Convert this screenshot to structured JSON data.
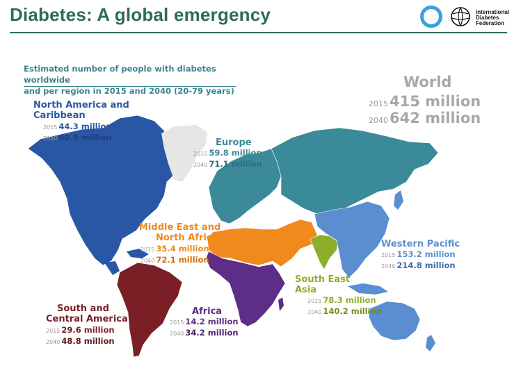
{
  "header": {
    "title": "Diabetes: A global emergency"
  },
  "logo": {
    "line1": "International",
    "line2": "Diabetes",
    "line3": "Federation"
  },
  "subtitle": {
    "line1": "Estimated number of people with diabetes worldwide",
    "line2": "and per region in 2015 and 2040 (20-79 years)"
  },
  "world": {
    "name": "World",
    "y2015": "2015",
    "v2015": "415 million",
    "y2040": "2040",
    "v2040": "642 million"
  },
  "regions": {
    "nac": {
      "name1": "North America and",
      "name2": "Caribbean",
      "y2015": "2015",
      "v2015": "44.3 million",
      "y2040": "2040",
      "v2040": "60.5 million",
      "color": "#2a57a5"
    },
    "eur": {
      "name": "Europe",
      "y2015": "2015",
      "v2015": "59.8 million",
      "y2040": "2040",
      "v2040": "71.1 million",
      "color": "#3a8a9a"
    },
    "mena": {
      "name1": "Middle East and",
      "name2": "North Africa",
      "y2015": "2015",
      "v2015": "35.4 million",
      "y2040": "2040",
      "v2040": "72.1 million",
      "color": "#f08a1c"
    },
    "wp": {
      "name": "Western Pacific",
      "y2015": "2015",
      "v2015": "153.2 million",
      "y2040": "2040",
      "v2040": "214.8 million",
      "color": "#5b8ed0"
    },
    "sea": {
      "name1": "South East",
      "name2": "Asia",
      "y2015": "2015",
      "v2015": "78.3 million",
      "y2040": "2040",
      "v2040": "140.2 million",
      "color": "#8cae2a"
    },
    "afr": {
      "name": "Africa",
      "y2015": "2015",
      "v2015": "14.2 million",
      "y2040": "2040",
      "v2040": "34.2 million",
      "color": "#5e2d88"
    },
    "sca": {
      "name1": "South and",
      "name2": "Central America",
      "y2015": "2015",
      "v2015": "29.6 million",
      "y2040": "2040",
      "v2040": "48.8 million",
      "color": "#7a1f25"
    }
  },
  "colors": {
    "greenland": "#e6e6e6",
    "title": "#2e6b5a",
    "subtitle": "#3c8590",
    "world_text": "#a8a8a8"
  }
}
